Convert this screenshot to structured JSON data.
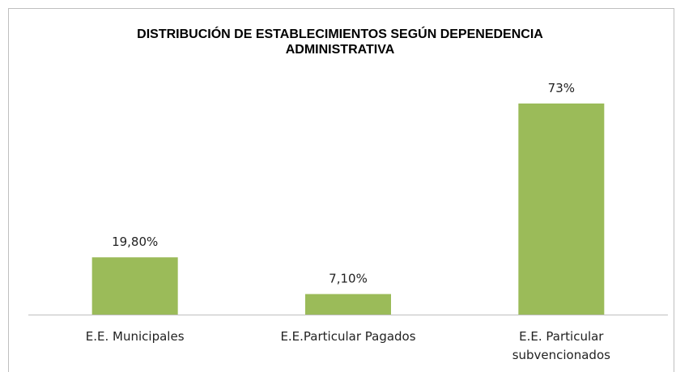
{
  "chart_data": {
    "type": "bar",
    "title": "DISTRIBUCIÓN DE ESTABLECIMIENTOS SEGÚN DEPENEDENCIA ADMINISTRATIVA",
    "categories": [
      "E.E. Municipales",
      "E.E.Particular Pagados",
      "E.E. Particular subvencionados"
    ],
    "values": [
      19.8,
      7.1,
      73
    ],
    "value_labels": [
      "19,80%",
      "7,10%",
      "73%"
    ],
    "color": "#9bbb59"
  }
}
